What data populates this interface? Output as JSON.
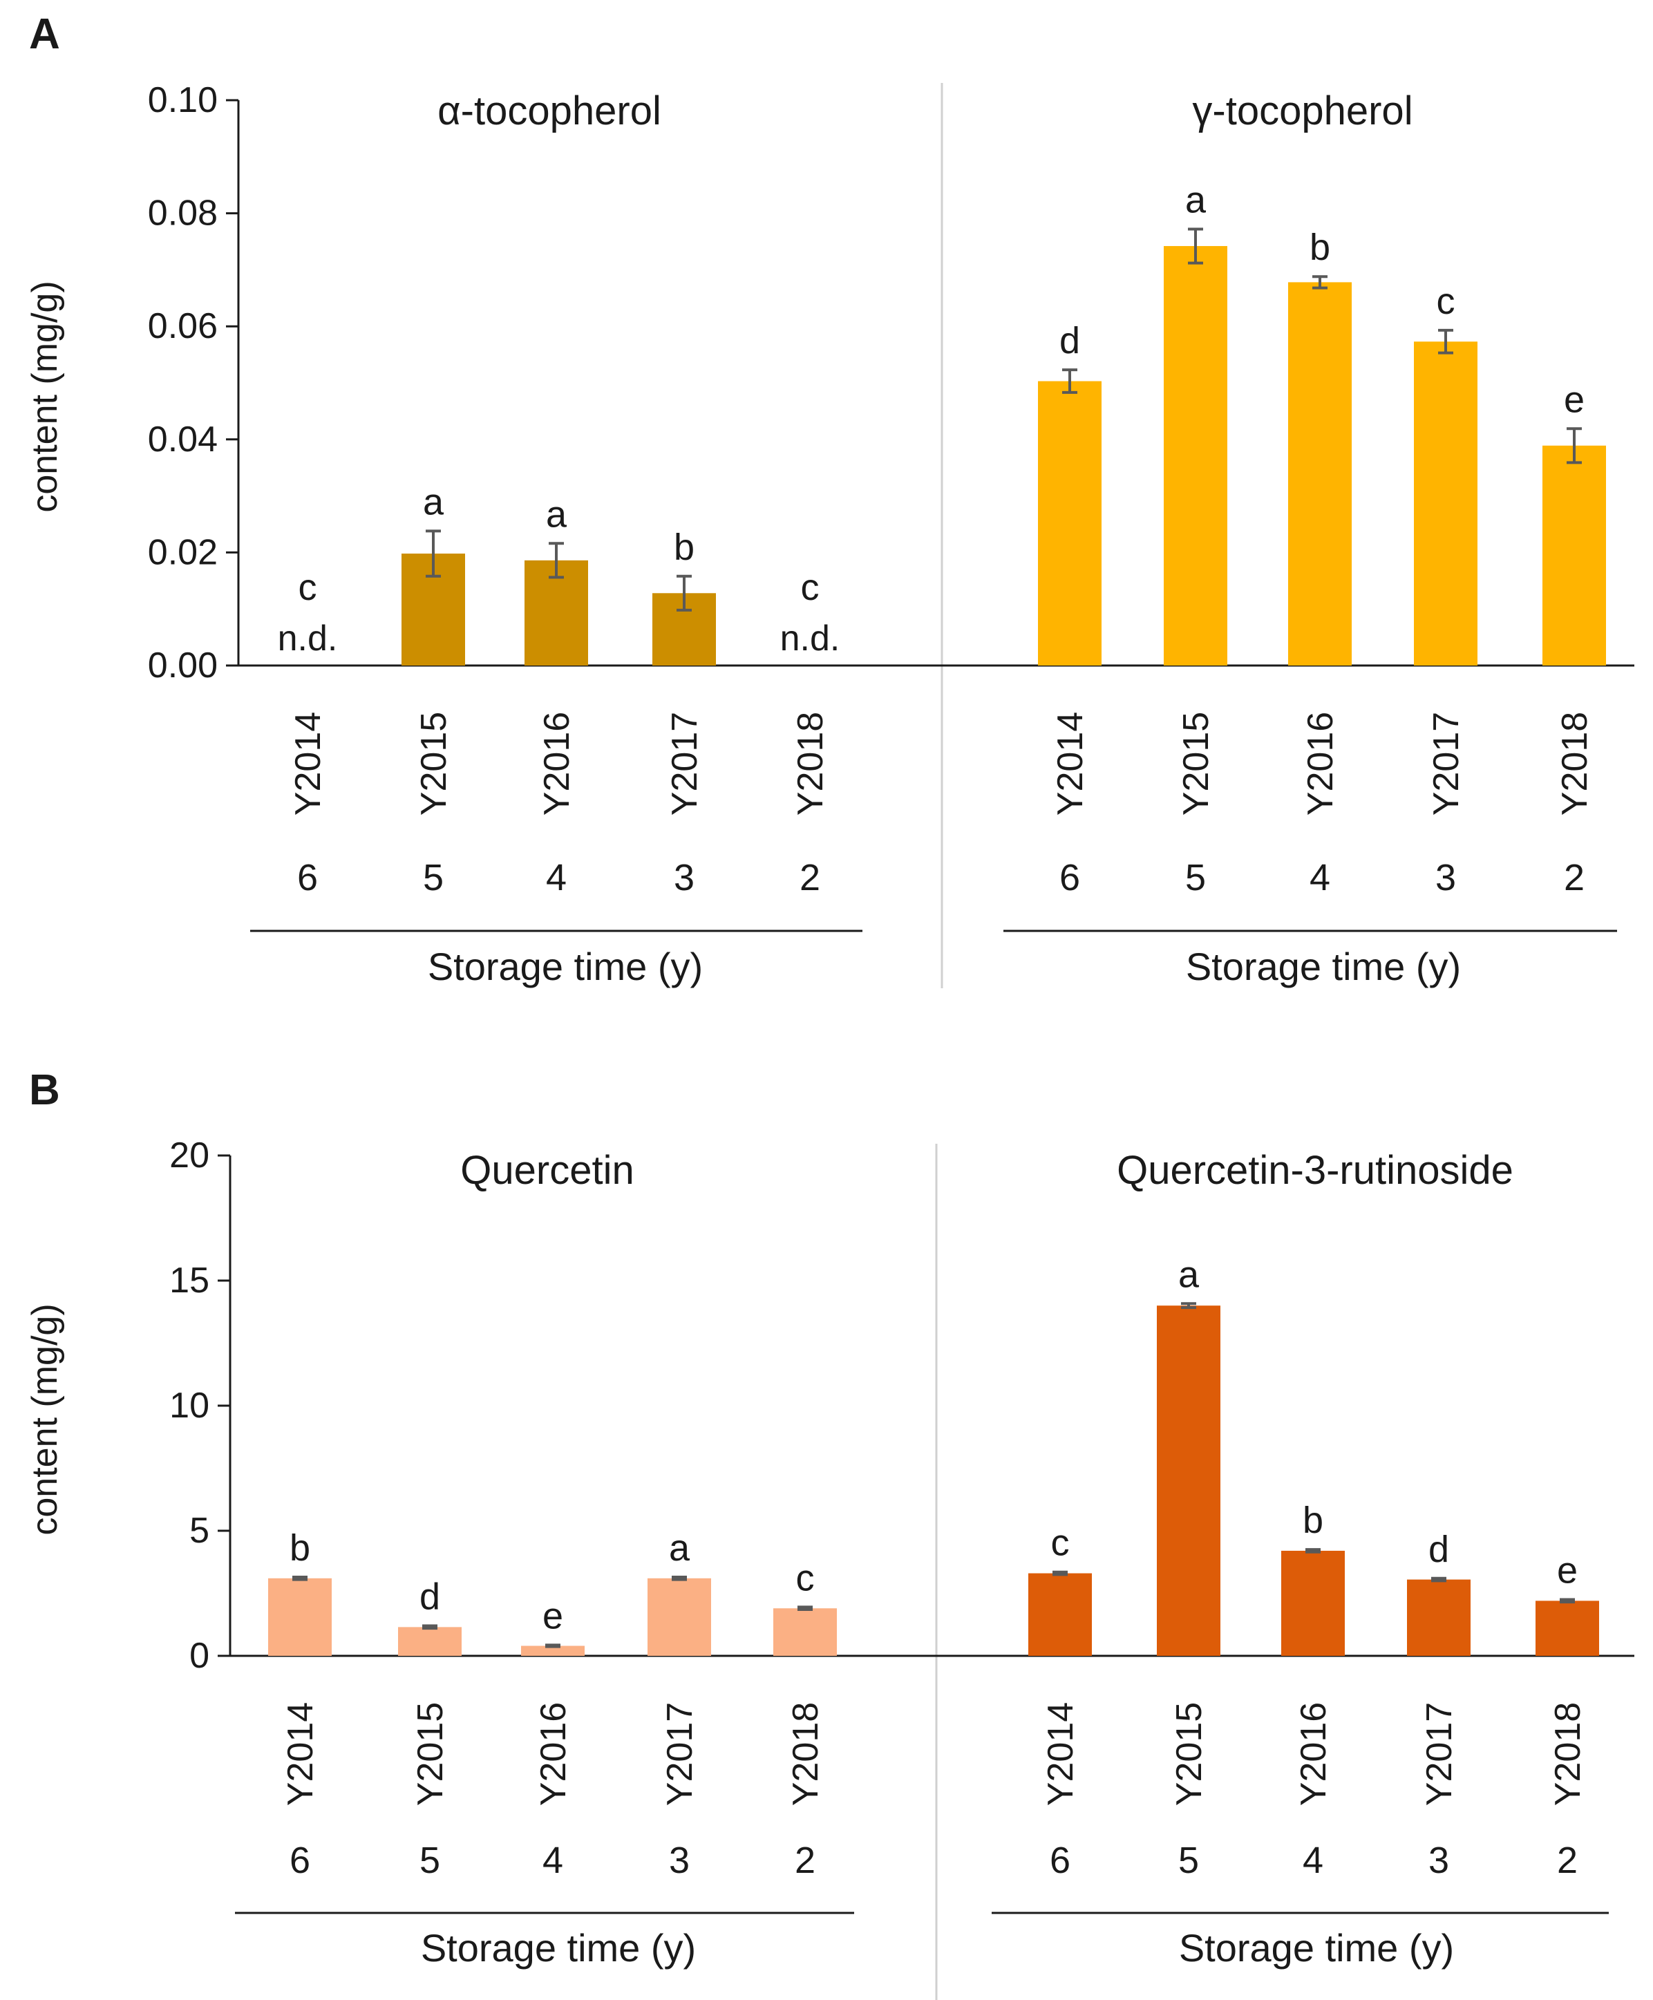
{
  "panel_labels": [
    "A",
    "B"
  ],
  "shared": {
    "storage_label": "Storage time (y)",
    "storage_years": [
      "6",
      "5",
      "4",
      "3",
      "2"
    ],
    "na_label": "n.d."
  },
  "colors": {
    "alpha": "#CC8E00",
    "gamma": "#FFB400",
    "quercetin": "#FBB084",
    "rutinoside": "#DD5C08",
    "axis": "#1a1a1a",
    "error": "#595959",
    "divider": "#d0d0d0"
  },
  "chart_data": [
    {
      "type": "bar",
      "panel": "A",
      "title": "α-tocopherol",
      "ylabel": "content (mg/g)",
      "xlabel": "Storage time (y)",
      "ylim": [
        0,
        0.1
      ],
      "yticks": [
        "0.00",
        "0.02",
        "0.04",
        "0.06",
        "0.08",
        "0.10"
      ],
      "categories": [
        "Y2014",
        "Y2015",
        "Y2016",
        "Y2017",
        "Y2018"
      ],
      "storage_years": [
        "6",
        "5",
        "4",
        "3",
        "2"
      ],
      "values": [
        0,
        0.0198,
        0.0186,
        0.0128,
        0
      ],
      "errors": [
        0,
        0.004,
        0.003,
        0.003,
        0
      ],
      "letters": [
        "c",
        "a",
        "a",
        "b",
        "c"
      ],
      "not_detected": [
        true,
        false,
        false,
        false,
        true
      ]
    },
    {
      "type": "bar",
      "panel": "A",
      "title": "γ-tocopherol",
      "xlabel": "Storage time (y)",
      "ylim": [
        0,
        0.1
      ],
      "categories": [
        "Y2014",
        "Y2015",
        "Y2016",
        "Y2017",
        "Y2018"
      ],
      "storage_years": [
        "6",
        "5",
        "4",
        "3",
        "2"
      ],
      "values": [
        0.0503,
        0.0742,
        0.0678,
        0.0573,
        0.0389
      ],
      "errors": [
        0.002,
        0.003,
        0.001,
        0.002,
        0.003
      ],
      "letters": [
        "d",
        "a",
        "b",
        "c",
        "e"
      ]
    },
    {
      "type": "bar",
      "panel": "B",
      "title": "Quercetin",
      "ylabel": "content (mg/g)",
      "xlabel": "Storage time (y)",
      "ylim": [
        0,
        20
      ],
      "yticks": [
        "0",
        "5",
        "10",
        "15",
        "20"
      ],
      "categories": [
        "Y2014",
        "Y2015",
        "Y2016",
        "Y2017",
        "Y2018"
      ],
      "storage_years": [
        "6",
        "5",
        "4",
        "3",
        "2"
      ],
      "values": [
        3.1,
        1.15,
        0.4,
        3.1,
        1.9
      ],
      "errors": [
        0.05,
        0.05,
        0.03,
        0.05,
        0.05
      ],
      "letters": [
        "b",
        "d",
        "e",
        "a",
        "c"
      ]
    },
    {
      "type": "bar",
      "panel": "B",
      "title": "Quercetin-3-rutinoside",
      "xlabel": "Storage time (y)",
      "ylim": [
        0,
        20
      ],
      "categories": [
        "Y2014",
        "Y2015",
        "Y2016",
        "Y2017",
        "Y2018"
      ],
      "storage_years": [
        "6",
        "5",
        "4",
        "3",
        "2"
      ],
      "values": [
        3.3,
        14.0,
        4.2,
        3.05,
        2.2
      ],
      "errors": [
        0.05,
        0.08,
        0.05,
        0.05,
        0.05
      ],
      "letters": [
        "c",
        "a",
        "b",
        "d",
        "e"
      ]
    }
  ]
}
